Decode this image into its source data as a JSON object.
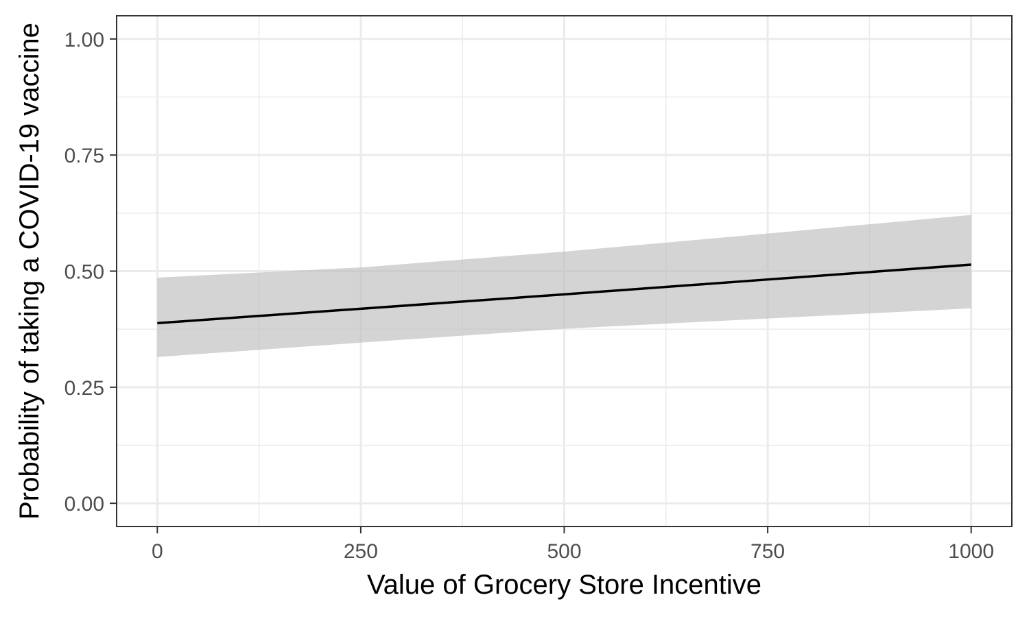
{
  "chart_data": {
    "type": "line",
    "title": "",
    "xlabel": "Value of Grocery Store Incentive",
    "ylabel": "Probability of taking a COVID-19 vaccine",
    "xlim": [
      -50,
      1050
    ],
    "ylim": [
      -0.05,
      1.05
    ],
    "x_ticks": [
      0,
      250,
      500,
      750,
      1000
    ],
    "x_tick_labels": [
      "0",
      "250",
      "500",
      "750",
      "1000"
    ],
    "y_ticks": [
      0,
      0.25,
      0.5,
      0.75,
      1.0
    ],
    "y_tick_labels": [
      "0.00",
      "0.25",
      "0.50",
      "0.75",
      "1.00"
    ],
    "x_minor_ticks": [
      125,
      375,
      625,
      875
    ],
    "y_minor_ticks": [
      0.125,
      0.375,
      0.625,
      0.875
    ],
    "grid": true,
    "legend": "none",
    "series": [
      {
        "x": [
          0,
          250,
          500,
          750,
          1000
        ],
        "y": [
          0.388,
          0.419,
          0.45,
          0.482,
          0.514
        ],
        "lower": [
          0.315,
          0.346,
          0.376,
          0.398,
          0.42
        ],
        "upper": [
          0.486,
          0.508,
          0.542,
          0.581,
          0.621
        ],
        "color": "#000000",
        "band_color": "#bdbdbd"
      }
    ]
  }
}
